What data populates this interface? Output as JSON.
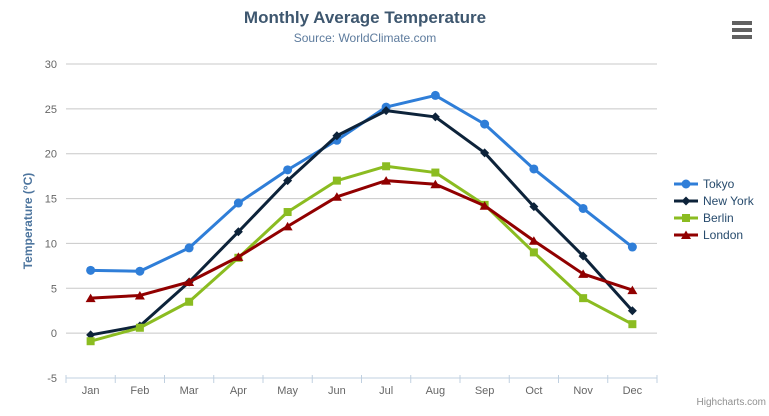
{
  "header": {
    "title": "Monthly Average Temperature",
    "subtitle": "Source: WorldClimate.com"
  },
  "yaxis_title": "Temperature (°C)",
  "credits_label": "Highcharts.com",
  "export_menu_icon": "hamburger-icon",
  "colors": {
    "grid": "#c8c8c8",
    "axis_line": "#c0d0e0",
    "tick_label": "#666666",
    "title": "#3e576f",
    "subtitle": "#5d7b9d",
    "axis_title": "#4d759e",
    "legend_text": "#274b6d",
    "credits": "#909090",
    "menu_icon": "#616161"
  },
  "chart_data": {
    "type": "line",
    "title": "Monthly Average Temperature",
    "subtitle": "Source: WorldClimate.com",
    "xlabel": "",
    "ylabel": "Temperature (°C)",
    "categories": [
      "Jan",
      "Feb",
      "Mar",
      "Apr",
      "May",
      "Jun",
      "Jul",
      "Aug",
      "Sep",
      "Oct",
      "Nov",
      "Dec"
    ],
    "series": [
      {
        "name": "Tokyo",
        "color": "#2f7ed8",
        "marker": "circle",
        "values": [
          7.0,
          6.9,
          9.5,
          14.5,
          18.2,
          21.5,
          25.2,
          26.5,
          23.3,
          18.3,
          13.9,
          9.6
        ]
      },
      {
        "name": "New York",
        "color": "#0d233a",
        "marker": "diamond",
        "values": [
          -0.2,
          0.8,
          5.7,
          11.3,
          17.0,
          22.0,
          24.8,
          24.1,
          20.1,
          14.1,
          8.6,
          2.5
        ]
      },
      {
        "name": "Berlin",
        "color": "#8bbc21",
        "marker": "square",
        "values": [
          -0.9,
          0.6,
          3.5,
          8.4,
          13.5,
          17.0,
          18.6,
          17.9,
          14.3,
          9.0,
          3.9,
          1.0
        ]
      },
      {
        "name": "London",
        "color": "#910000",
        "marker": "triangle",
        "values": [
          3.9,
          4.2,
          5.7,
          8.5,
          11.9,
          15.2,
          17.0,
          16.6,
          14.2,
          10.3,
          6.6,
          4.8
        ]
      }
    ],
    "ylim": [
      -5,
      30
    ],
    "yticks": [
      -5,
      0,
      5,
      10,
      15,
      20,
      25,
      30
    ],
    "grid": "horizontal",
    "legend_position": "right"
  }
}
